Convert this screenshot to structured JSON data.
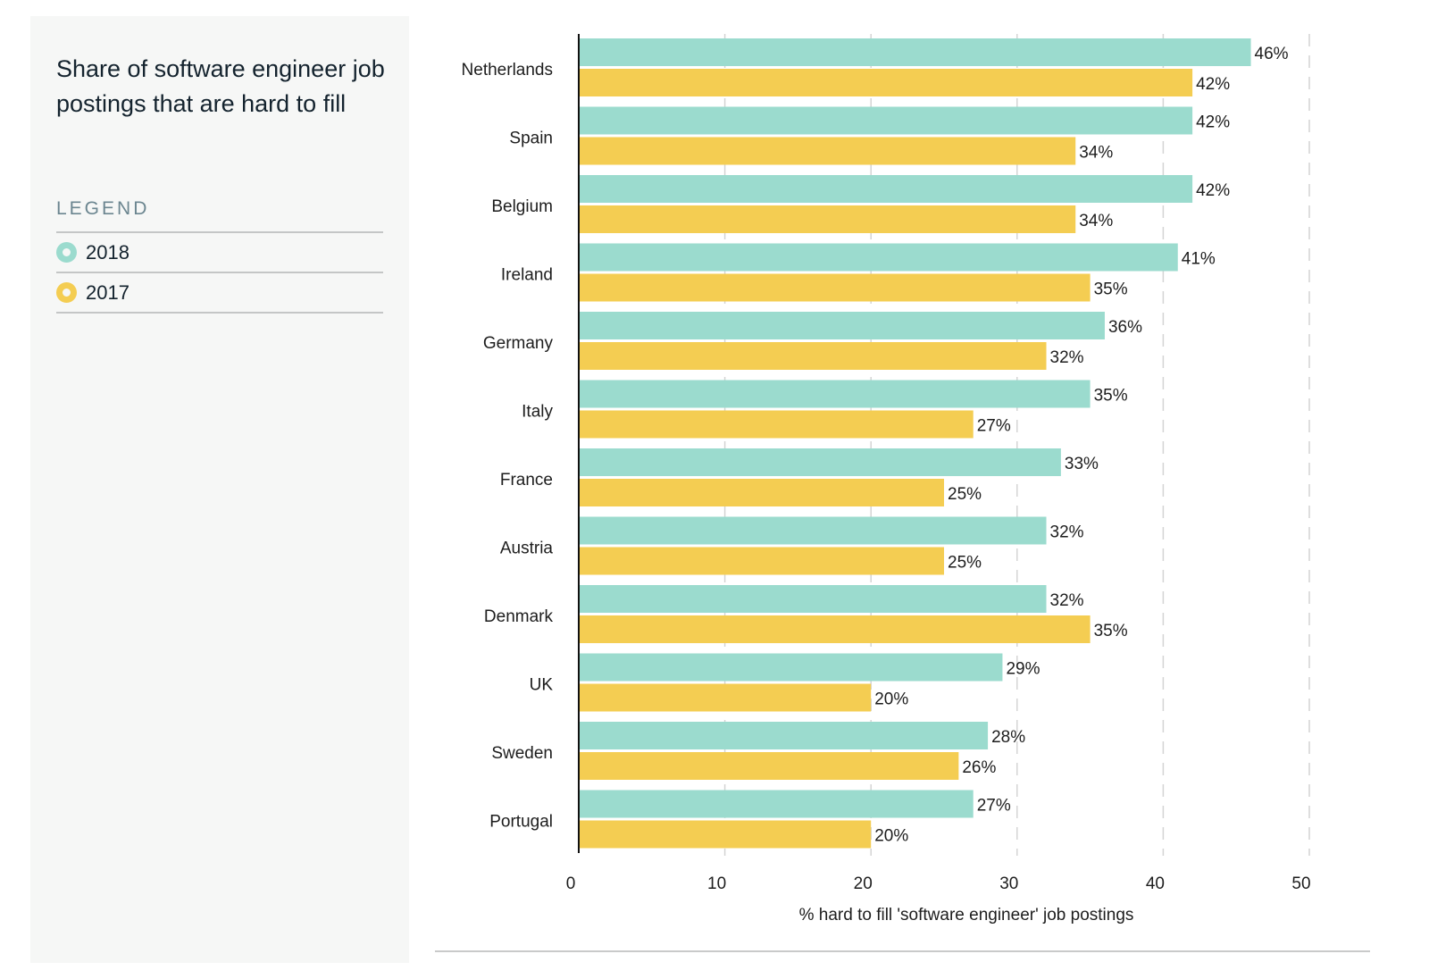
{
  "chart_data": {
    "type": "bar",
    "orientation": "horizontal",
    "title": "Share of software engineer job postings that are hard to fill",
    "xlabel": "% hard to fill 'software engineer' job postings",
    "ylabel": "",
    "xlim": [
      0,
      50
    ],
    "xticks": [
      0,
      10,
      20,
      30,
      40,
      50
    ],
    "grid": "vertical dashed",
    "legend_title": "LEGEND",
    "legend_position": "left-panel",
    "categories": [
      "Netherlands",
      "Spain",
      "Belgium",
      "Ireland",
      "Germany",
      "Italy",
      "France",
      "Austria",
      "Denmark",
      "UK",
      "Sweden",
      "Portugal"
    ],
    "series": [
      {
        "name": "2018",
        "color": "#9bdbce",
        "values": [
          46,
          42,
          42,
          41,
          36,
          35,
          33,
          32,
          32,
          29,
          28,
          27
        ]
      },
      {
        "name": "2017",
        "color": "#f4cd52",
        "values": [
          42,
          34,
          34,
          35,
          32,
          27,
          25,
          25,
          35,
          20,
          26,
          20
        ]
      }
    ],
    "value_suffix": "%"
  }
}
